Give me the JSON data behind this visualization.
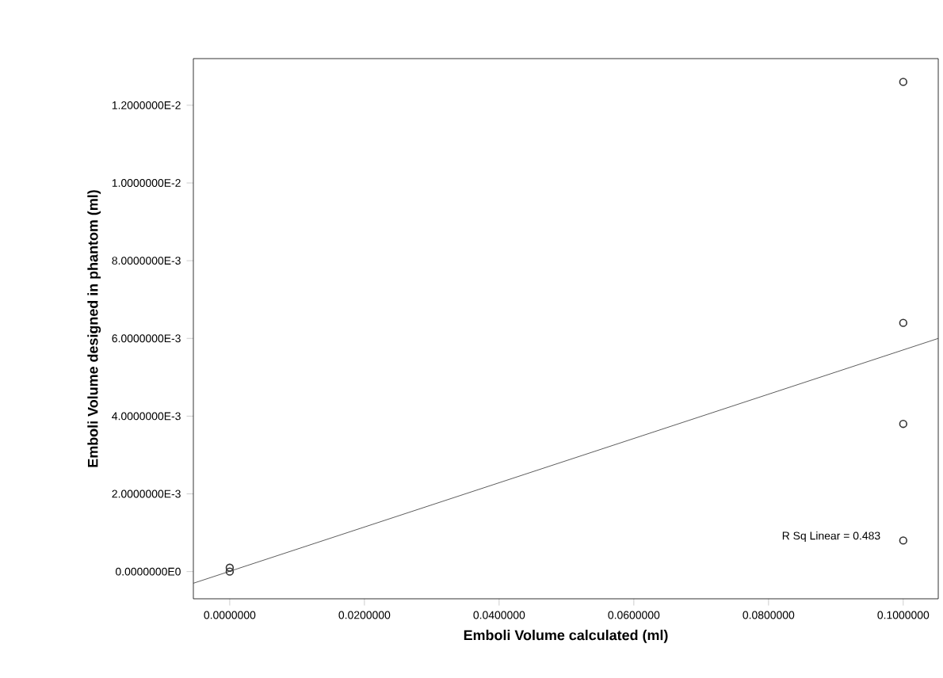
{
  "chart_data": {
    "type": "scatter",
    "xlabel": "Emboli Volume calculated (ml)",
    "ylabel": "Emboli Volume designed in phantom (ml)",
    "annotations": [
      "R Sq Linear = 0.483"
    ],
    "series": [
      {
        "color": "#333333",
        "marker": "circle",
        "x": [
          0,
          0,
          0.1,
          0.1,
          0.1,
          0.1
        ],
        "values": [
          0,
          0.0001,
          0.0126,
          0.0064,
          0.0038,
          0.0008
        ]
      },
      {
        "type": "line",
        "color": "#333333",
        "marker": "none",
        "x": [
          -0.0054,
          0.1052
        ],
        "values": [
          -0.0003,
          0.006
        ]
      }
    ],
    "xlim": [
      -0.0054,
      0.1052
    ],
    "ylim": [
      -0.0007,
      0.0132
    ],
    "xticks": [
      {
        "value": 0,
        "label": "0.0000000"
      },
      {
        "value": 0.02,
        "label": "0.0200000"
      },
      {
        "value": 0.04,
        "label": "0.0400000"
      },
      {
        "value": 0.06,
        "label": "0.0600000"
      },
      {
        "value": 0.08,
        "label": "0.0800000"
      },
      {
        "value": 0.1,
        "label": "0.1000000"
      }
    ],
    "yticks": [
      {
        "value": 0,
        "label": "0.0000000E0"
      },
      {
        "value": 0.002,
        "label": "2.0000000E-3"
      },
      {
        "value": 0.004,
        "label": "4.0000000E-3"
      },
      {
        "value": 0.006,
        "label": "6.0000000E-3"
      },
      {
        "value": 0.008,
        "label": "8.0000000E-3"
      },
      {
        "value": 0.01,
        "label": "1.0000000E-2"
      },
      {
        "value": 0.012,
        "label": "1.2000000E-2"
      }
    ]
  }
}
